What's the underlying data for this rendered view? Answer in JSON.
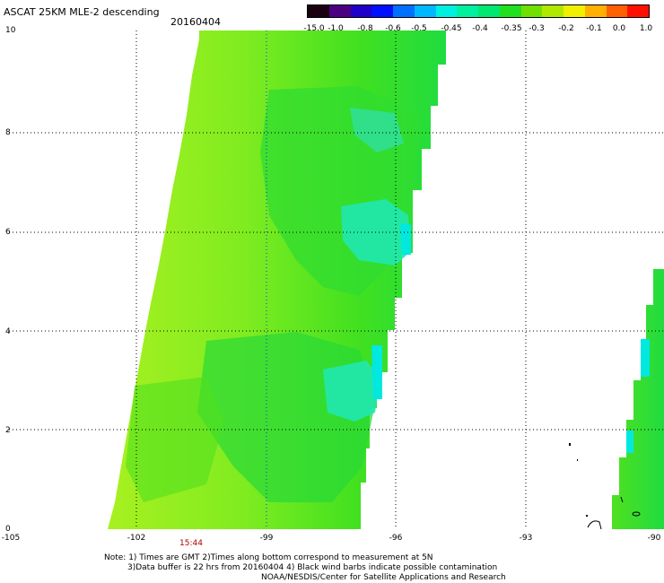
{
  "header": {
    "title": "ASCAT 25KM MLE-2 descending",
    "date": "20160404"
  },
  "colorbar": {
    "colors": [
      "#1a0010",
      "#4b0082",
      "#2000c8",
      "#0010ff",
      "#0070ff",
      "#00b8ff",
      "#00f0e0",
      "#00f0a0",
      "#00e870",
      "#20e020",
      "#70e000",
      "#b0e800",
      "#f0f000",
      "#ffb000",
      "#ff6000",
      "#ff1000"
    ],
    "labels": [
      "-15.0",
      "-1.0",
      "-0.8",
      "-0.6",
      "-0.5",
      "-0.45",
      "-0.4",
      "-0.35",
      "-0.3",
      "-0.2",
      "-0.1",
      "0.0",
      "1.0"
    ]
  },
  "axes": {
    "y_ticks": [
      "0",
      "2",
      "4",
      "6",
      "8",
      "10"
    ],
    "x_ticks": [
      "-105",
      "-102",
      "-99",
      "-96",
      "-93",
      "-90"
    ]
  },
  "swath": {
    "time_label": "15:44"
  },
  "notes": [
    "Note: 1) Times are GMT 2)Times along bottom correspond to measurement at 5N",
    "3)Data buffer is 22 hrs from 20160404 4) Black wind barbs indicate possible contamination",
    "NOAA/NESDIS/Center for Satellite Applications and Research"
  ]
}
